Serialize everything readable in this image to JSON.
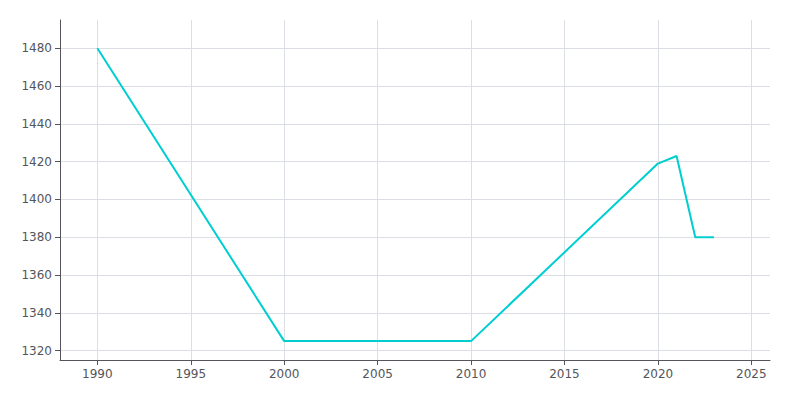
{
  "chart_data": {
    "type": "line",
    "x": [
      1990,
      2000,
      2010,
      2020,
      2021,
      2022,
      2023
    ],
    "values": [
      1480,
      1325,
      1325,
      1419,
      1423,
      1380,
      1380
    ],
    "color": "#00CED1",
    "xlim": [
      1988,
      2026
    ],
    "ylim": [
      1315,
      1495
    ],
    "xticks": [
      1990,
      1995,
      2000,
      2005,
      2010,
      2015,
      2020,
      2025
    ],
    "yticks": [
      1320,
      1340,
      1360,
      1380,
      1400,
      1420,
      1440,
      1460,
      1480
    ],
    "grid": true
  }
}
